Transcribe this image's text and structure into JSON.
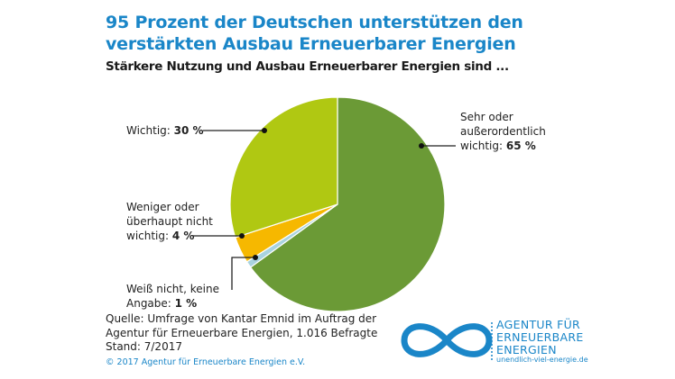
{
  "title_line1": "95 Prozent der Deutschen unterstützen den",
  "title_line2": "verstärkten Ausbau Erneuerbarer Energien",
  "subtitle": "Stärkere Nutzung und Ausbau Erneuerbarer Energien sind ...",
  "chart_data": {
    "type": "pie",
    "title": "95 Prozent der Deutschen unterstützen den verstärkten Ausbau Erneuerbarer Energien",
    "subtitle": "Stärkere Nutzung und Ausbau Erneuerbarer Energien sind ...",
    "start": "top, clockwise",
    "slices": [
      {
        "label": "Sehr oder außerordentlich wichtig",
        "value": 65,
        "color": "#6b9a36"
      },
      {
        "label": "Weiß nicht, keine Angabe",
        "value": 1,
        "color": "#a9d3df"
      },
      {
        "label": "Weniger oder überhaupt nicht wichtig",
        "value": 4,
        "color": "#f6b800"
      },
      {
        "label": "Wichtig",
        "value": 30,
        "color": "#b0c812"
      }
    ]
  },
  "labels": {
    "high": {
      "l1": "Sehr oder",
      "l2": "außerordentlich",
      "l3": "wichtig: ",
      "v": "65 %"
    },
    "unknown": {
      "l1": "Weiß nicht, keine",
      "l2": "Angabe: ",
      "v": "1 %"
    },
    "low": {
      "l1": "Weniger oder",
      "l2": "überhaupt nicht",
      "l3": "wichtig: ",
      "v": "4 %"
    },
    "mid": {
      "l1": "Wichtig: ",
      "v": "30 %"
    }
  },
  "footer": {
    "l1": "Quelle: Umfrage von Kantar Emnid im Auftrag der",
    "l2": "Agentur für Erneuerbare Energien, 1.016 Befragte",
    "l3": "Stand: 7/2017",
    "copyright": "© 2017 Agentur für Erneuerbare Energien e.V."
  },
  "logo": {
    "l1": "AGENTUR FÜR",
    "l2": "ERNEUERBARE",
    "l3": "ENERGIEN",
    "url": "unendlich-viel-energie.de",
    "color": "#1a86c8"
  }
}
